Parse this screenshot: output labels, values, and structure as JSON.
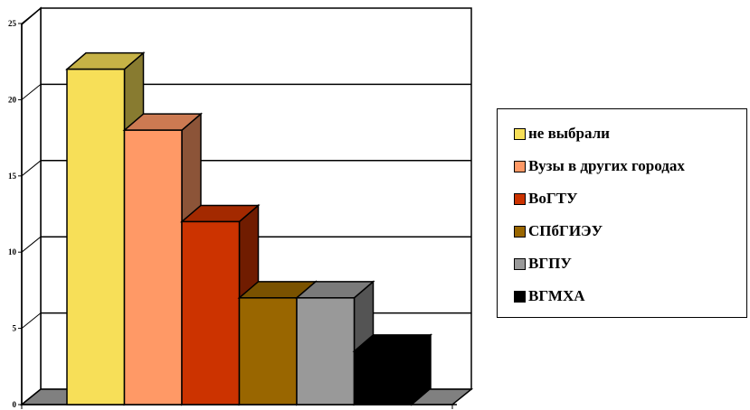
{
  "chart_data": {
    "type": "bar",
    "title": "",
    "xlabel": "",
    "ylabel": "",
    "ylim": [
      0,
      25
    ],
    "yticks": [
      "0",
      "5",
      "10",
      "15",
      "20",
      "25"
    ],
    "grid": true,
    "style": "3d",
    "legend_position": "right",
    "series": [
      {
        "name": "не выбрали",
        "value": 22,
        "color": "#F7DF58"
      },
      {
        "name": "Вузы в других городах",
        "value": 18,
        "color": "#FF9966"
      },
      {
        "name": "ВоГТУ",
        "value": 12,
        "color": "#CC3300"
      },
      {
        "name": "СПбГИЭУ",
        "value": 7,
        "color": "#996600"
      },
      {
        "name": "ВГПУ",
        "value": 7,
        "color": "#999999"
      },
      {
        "name": "ВГМХА",
        "value": 3.5,
        "color": "#000000"
      }
    ]
  }
}
